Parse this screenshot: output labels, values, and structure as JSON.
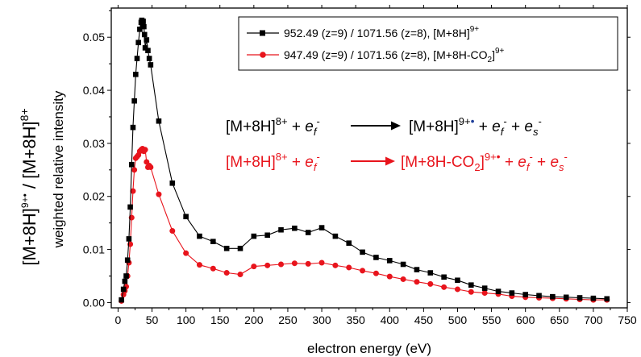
{
  "chart_data": {
    "type": "line",
    "xlabel": "electron energy (eV)",
    "ylabel": "weighted relative intensity",
    "outer_ylabel": {
      "part1": "[M+8H]",
      "sup1": "9+•",
      "slash": " / ",
      "part2": "[M+8H]",
      "sup2": "8+"
    },
    "xlim": [
      -10,
      750
    ],
    "ylim": [
      -0.001,
      0.0555
    ],
    "xticks": [
      0,
      50,
      100,
      150,
      200,
      250,
      300,
      350,
      400,
      450,
      500,
      550,
      600,
      650,
      700,
      750
    ],
    "yticks": [
      0.0,
      0.01,
      0.02,
      0.03,
      0.04,
      0.05
    ],
    "ytick_labels": [
      "0.00",
      "0.01",
      "0.02",
      "0.03",
      "0.04",
      "0.05"
    ],
    "grid": false,
    "legend_position": "top-right",
    "series": [
      {
        "name": "952.49 (z=9) / 1071.56 (z=8), [M+8H]",
        "name_sup": "9+",
        "color": "#000000",
        "marker": "square",
        "x": [
          5,
          8,
          10,
          12,
          14,
          16,
          18,
          20,
          22,
          24,
          26,
          28,
          30,
          32,
          34,
          35,
          36,
          37,
          38,
          39,
          40,
          42,
          44,
          46,
          48,
          60,
          80,
          100,
          120,
          140,
          160,
          180,
          200,
          220,
          240,
          260,
          280,
          300,
          320,
          340,
          360,
          380,
          400,
          420,
          440,
          460,
          480,
          500,
          520,
          540,
          560,
          580,
          600,
          620,
          640,
          660,
          680,
          700,
          720
        ],
        "y": [
          0.0005,
          0.0025,
          0.004,
          0.005,
          0.008,
          0.012,
          0.018,
          0.026,
          0.033,
          0.038,
          0.043,
          0.046,
          0.049,
          0.0515,
          0.0528,
          0.0532,
          0.0525,
          0.053,
          0.052,
          0.0505,
          0.048,
          0.0495,
          0.0475,
          0.046,
          0.0448,
          0.0342,
          0.0225,
          0.0162,
          0.0125,
          0.0115,
          0.0102,
          0.0102,
          0.0125,
          0.0127,
          0.0137,
          0.014,
          0.0132,
          0.0141,
          0.0125,
          0.0112,
          0.0095,
          0.0085,
          0.0079,
          0.0072,
          0.0062,
          0.0056,
          0.0048,
          0.0042,
          0.0033,
          0.0027,
          0.0021,
          0.0018,
          0.0015,
          0.0013,
          0.0011,
          0.001,
          0.0009,
          0.0008,
          0.0007
        ]
      },
      {
        "name": "947.49 (z=9) / 1071.56 (z=8), [M+8H-CO",
        "name_sub": "2",
        "name_tail": "]",
        "name_sup": "9+",
        "color": "#e8141c",
        "marker": "circle",
        "x": [
          5,
          8,
          10,
          12,
          14,
          16,
          18,
          20,
          22,
          24,
          26,
          28,
          30,
          32,
          34,
          36,
          38,
          40,
          42,
          44,
          46,
          48,
          60,
          80,
          100,
          120,
          140,
          160,
          180,
          200,
          220,
          240,
          260,
          280,
          300,
          320,
          340,
          360,
          380,
          400,
          420,
          440,
          460,
          480,
          500,
          520,
          540,
          560,
          580,
          600,
          620,
          640,
          660,
          680,
          700,
          720
        ],
        "y": [
          0.0003,
          0.0015,
          0.0022,
          0.003,
          0.005,
          0.0075,
          0.011,
          0.016,
          0.021,
          0.025,
          0.0272,
          0.0275,
          0.0278,
          0.0285,
          0.0288,
          0.029,
          0.0285,
          0.0288,
          0.0265,
          0.0255,
          0.0258,
          0.0255,
          0.0204,
          0.0135,
          0.0093,
          0.0071,
          0.0064,
          0.0056,
          0.0053,
          0.0068,
          0.007,
          0.0072,
          0.0074,
          0.0073,
          0.0075,
          0.007,
          0.0066,
          0.006,
          0.0055,
          0.0049,
          0.0044,
          0.0039,
          0.0035,
          0.0029,
          0.0025,
          0.002,
          0.0018,
          0.0016,
          0.0012,
          0.001,
          0.0009,
          0.0008,
          0.0007,
          0.0006,
          0.0005,
          0.0005
        ]
      }
    ],
    "annotations": [
      {
        "color": "#000000",
        "left": "[M+8H]",
        "left_sup": "8+",
        "plus": " + ",
        "e": "e",
        "e_sub": "f",
        "e_sup": "-",
        "right": "[M+8H]",
        "right_sup": "9+",
        "dot": "•",
        "tail1": " + ",
        "tail2": " + "
      },
      {
        "color": "#e8141c",
        "left": "[M+8H]",
        "left_sup": "8+",
        "plus": " + ",
        "e": "e",
        "e_sub": "f",
        "e_sup": "-",
        "right": "[M+8H-CO",
        "right_sub": "2",
        "right_tail": "]",
        "right_sup": "9+",
        "dot": "•",
        "tail1": " + ",
        "tail2": " + "
      }
    ],
    "annotation_es": {
      "e": "e",
      "sub": "s",
      "sup": "-"
    }
  },
  "colors": {
    "black_series": "#000000",
    "red_series": "#e8141c",
    "dot_blue": "#1f3f9a"
  }
}
